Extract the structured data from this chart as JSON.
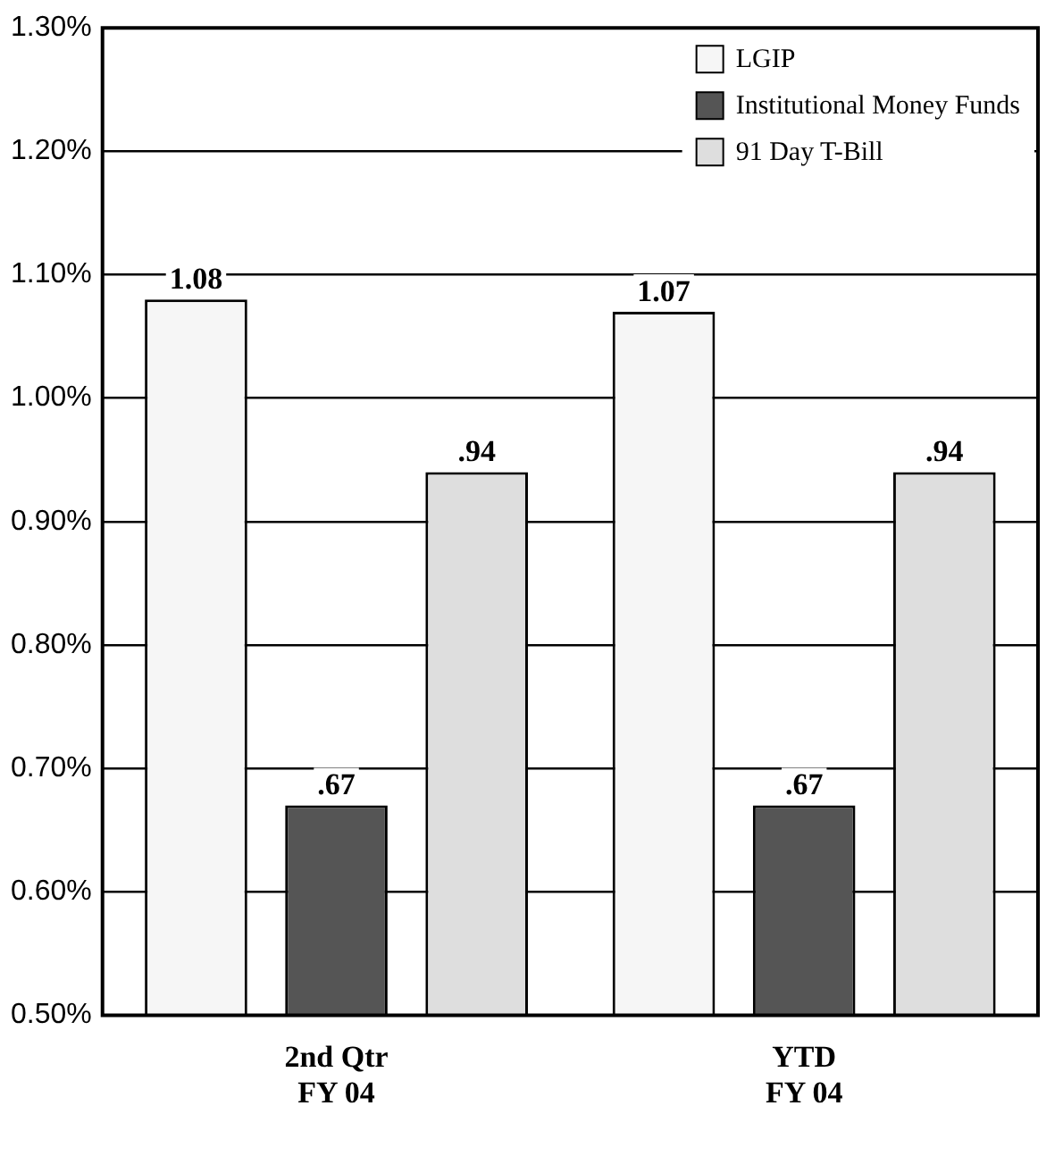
{
  "chart_data": {
    "type": "bar",
    "categories": [
      "2nd Qtr\nFY 04",
      "YTD\nFY 04"
    ],
    "series": [
      {
        "name": "LGIP",
        "color": "#f6f6f6",
        "values": [
          1.08,
          1.07
        ],
        "value_labels": [
          "1.08",
          "1.07"
        ]
      },
      {
        "name": "Institutional Money Funds",
        "color": "#555555",
        "values": [
          0.67,
          0.67
        ],
        "value_labels": [
          ".67",
          ".67"
        ]
      },
      {
        "name": "91 Day T-Bill",
        "color": "#dedede",
        "values": [
          0.94,
          0.94
        ],
        "value_labels": [
          ".94",
          ".94"
        ]
      }
    ],
    "ylim": [
      0.5,
      1.3
    ],
    "yticks": [
      {
        "value": 0.5,
        "label": "0.50%"
      },
      {
        "value": 0.6,
        "label": "0.60%"
      },
      {
        "value": 0.7,
        "label": "0.70%"
      },
      {
        "value": 0.8,
        "label": "0.80%"
      },
      {
        "value": 0.9,
        "label": "0.90%"
      },
      {
        "value": 1.0,
        "label": "1.00%"
      },
      {
        "value": 1.1,
        "label": "1.10%"
      },
      {
        "value": 1.2,
        "label": "1.20%"
      },
      {
        "value": 1.3,
        "label": "1.30%"
      }
    ],
    "grid": "y",
    "legend": "top right"
  }
}
